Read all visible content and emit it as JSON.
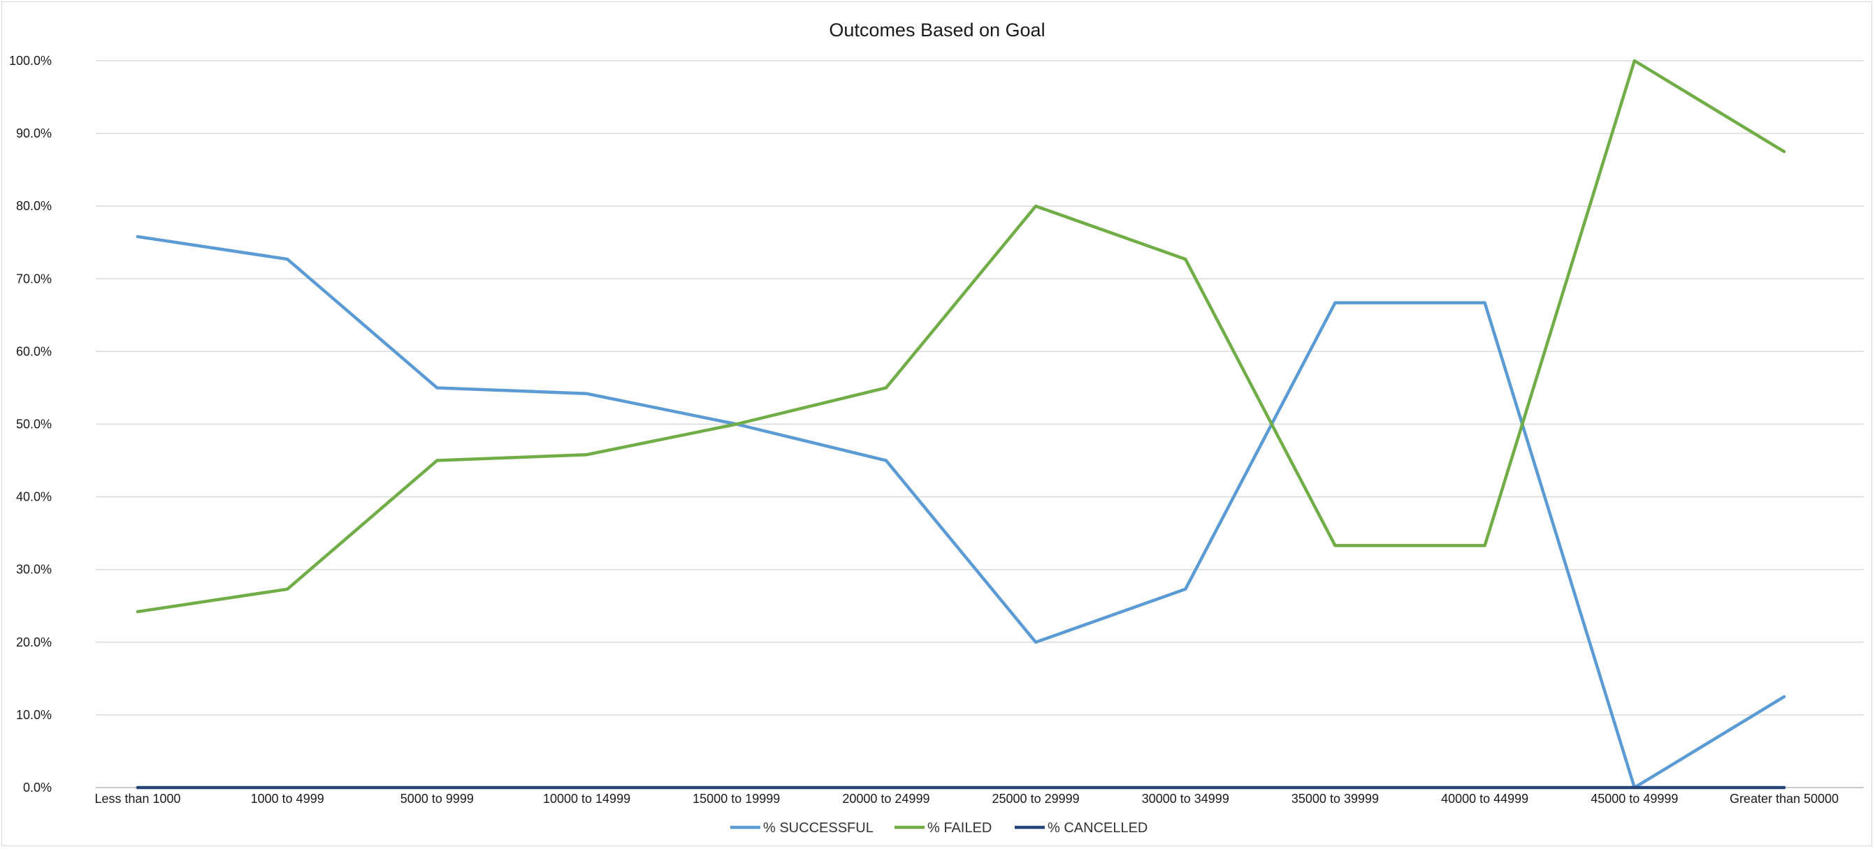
{
  "chart_data": {
    "type": "line",
    "title": "Outcomes Based on Goal",
    "xlabel": "",
    "ylabel": "",
    "ylim": [
      0,
      100
    ],
    "y_ticks": [
      "0.0%",
      "10.0%",
      "20.0%",
      "30.0%",
      "40.0%",
      "50.0%",
      "60.0%",
      "70.0%",
      "80.0%",
      "90.0%",
      "100.0%"
    ],
    "grid": "horizontal",
    "legend_position": "bottom",
    "categories": [
      "Less than 1000",
      "1000 to 4999",
      "5000 to 9999",
      "10000 to 14999",
      "15000 to 19999",
      "20000 to 24999",
      "25000 to 29999",
      "30000 to 34999",
      "35000 to 39999",
      "40000 to 44999",
      "45000 to 49999",
      "Greater than 50000"
    ],
    "series": [
      {
        "name": "% SUCCESSFUL",
        "color": "#5b9bd5",
        "values": [
          75.8,
          72.7,
          55.0,
          54.2,
          50.0,
          45.0,
          20.0,
          27.3,
          66.7,
          66.7,
          0.0,
          12.5
        ]
      },
      {
        "name": "% FAILED",
        "color": "#70ad47",
        "values": [
          24.2,
          27.3,
          45.0,
          45.8,
          50.0,
          55.0,
          80.0,
          72.7,
          33.3,
          33.3,
          100.0,
          87.5
        ]
      },
      {
        "name": "% CANCELLED",
        "color": "#264478",
        "values": [
          0,
          0,
          0,
          0,
          0,
          0,
          0,
          0,
          0,
          0,
          0,
          0
        ]
      }
    ]
  }
}
